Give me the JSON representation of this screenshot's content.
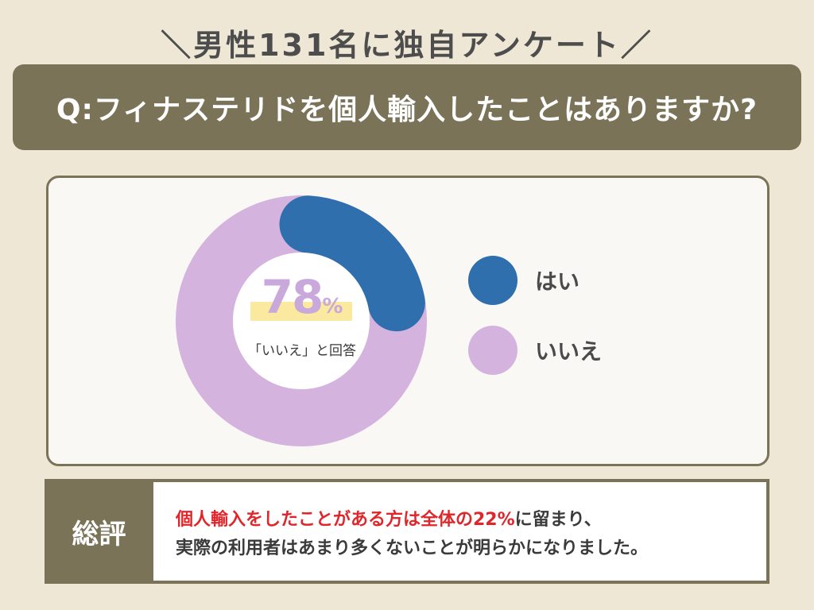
{
  "header": {
    "title": "＼男性131名に独自アンケート／"
  },
  "question": {
    "text": "Q:フィナステリドを個人輸入したことはありますか?"
  },
  "chart_data": {
    "type": "donut",
    "categories": [
      "はい",
      "いいえ"
    ],
    "values": [
      22,
      78
    ],
    "colors": [
      "#2f6fad",
      "#d4b3de"
    ],
    "center_value": "78",
    "center_unit": "%",
    "center_caption": "「いいえ」と回答"
  },
  "legend": [
    {
      "label": "はい",
      "color": "#2f6fad"
    },
    {
      "label": "いいえ",
      "color": "#d4b3de"
    }
  ],
  "summary": {
    "title": "総評",
    "highlight": "個人輸入をしたことがある方は全体の22%",
    "line1_rest": "に留まり、",
    "line2": "実際の利用者はあまり多くないことが明らかになりました。"
  },
  "colors": {
    "background": "#efe7d6",
    "banner": "#7a7358",
    "accent_red": "#e0262a",
    "highlight": "#fbe9a0"
  }
}
